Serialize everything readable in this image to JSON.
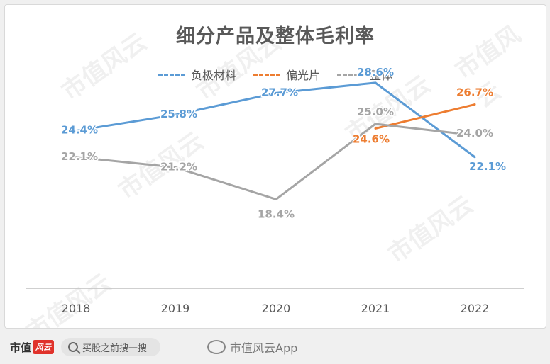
{
  "chart_data": {
    "type": "line",
    "title": "细分产品及整体毛利率",
    "categories": [
      "2018",
      "2019",
      "2020",
      "2021",
      "2022"
    ],
    "ylim": [
      10,
      32
    ],
    "grid": false,
    "legend_position": "top-center",
    "series": [
      {
        "name": "负极材料",
        "color": "#5b9bd5",
        "values": [
          24.4,
          25.8,
          27.7,
          28.6,
          22.1
        ],
        "labels": [
          "24.4%",
          "25.8%",
          "27.7%",
          "28.6%",
          "22.1%"
        ]
      },
      {
        "name": "偏光片",
        "color": "#ed7d31",
        "values": [
          null,
          null,
          null,
          24.6,
          26.7
        ],
        "labels": [
          "",
          "",
          "",
          "24.6%",
          "26.7%"
        ]
      },
      {
        "name": "整体",
        "color": "#a5a5a5",
        "values": [
          22.1,
          21.2,
          18.4,
          25.0,
          24.0
        ],
        "labels": [
          "22.1%",
          "21.2%",
          "18.4%",
          "25.0%",
          "24.0%"
        ]
      }
    ]
  },
  "watermark_text": "市值风云",
  "footer": {
    "brand": "市值",
    "brand_badge": "风云",
    "search_placeholder": "买股之前搜一搜",
    "weibo_handle": "市值风云App"
  }
}
